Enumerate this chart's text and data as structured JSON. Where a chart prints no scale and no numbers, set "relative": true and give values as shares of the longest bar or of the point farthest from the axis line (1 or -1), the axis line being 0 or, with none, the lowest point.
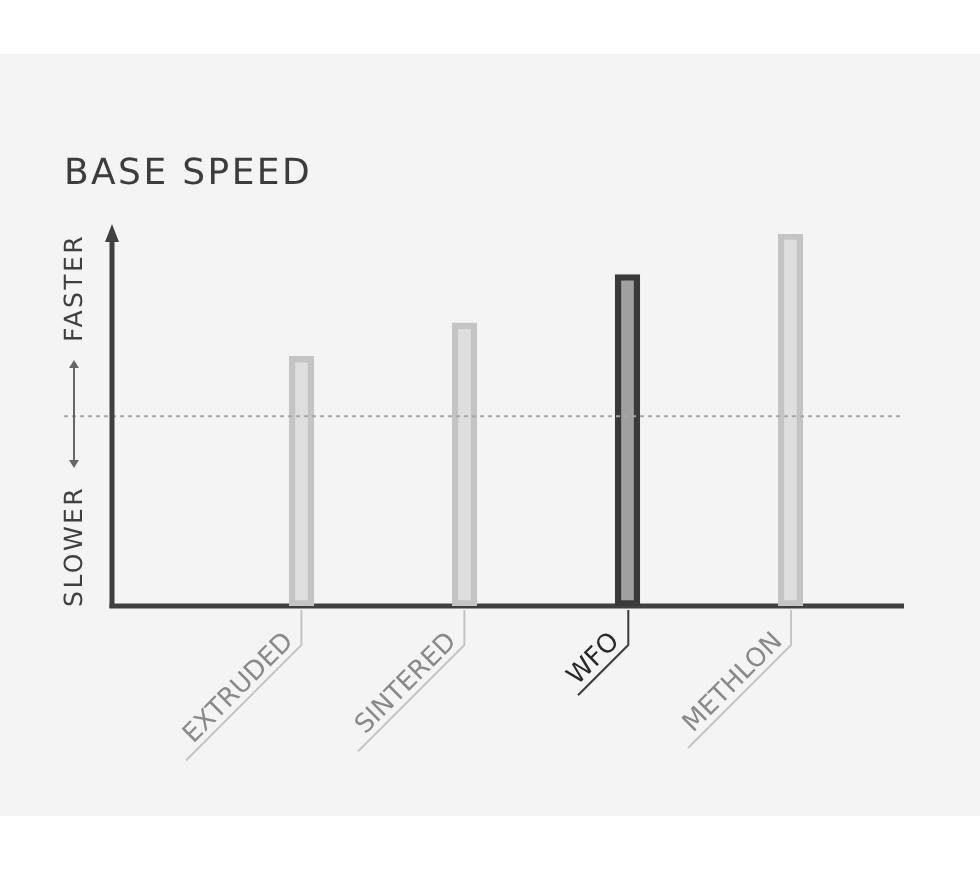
{
  "chart_data": {
    "type": "bar",
    "title": "BASE SPEED",
    "categories": [
      "EXTRUDED",
      "SINTERED",
      "WFO",
      "METHLON"
    ],
    "values": [
      0.67,
      0.76,
      0.89,
      1
    ],
    "colors": [
      "#c4c4c4",
      "#c4c4c4",
      "#3a3a3a",
      "#c4c4c4"
    ],
    "relative": true,
    "ref_lines": [
      {
        "axis": "y",
        "value": 0.51,
        "color": "#a8a8a8",
        "line_style": "dotted"
      }
    ],
    "annotations": [
      "SLOWER",
      "FASTER"
    ],
    "grid": false,
    "legend": false
  }
}
